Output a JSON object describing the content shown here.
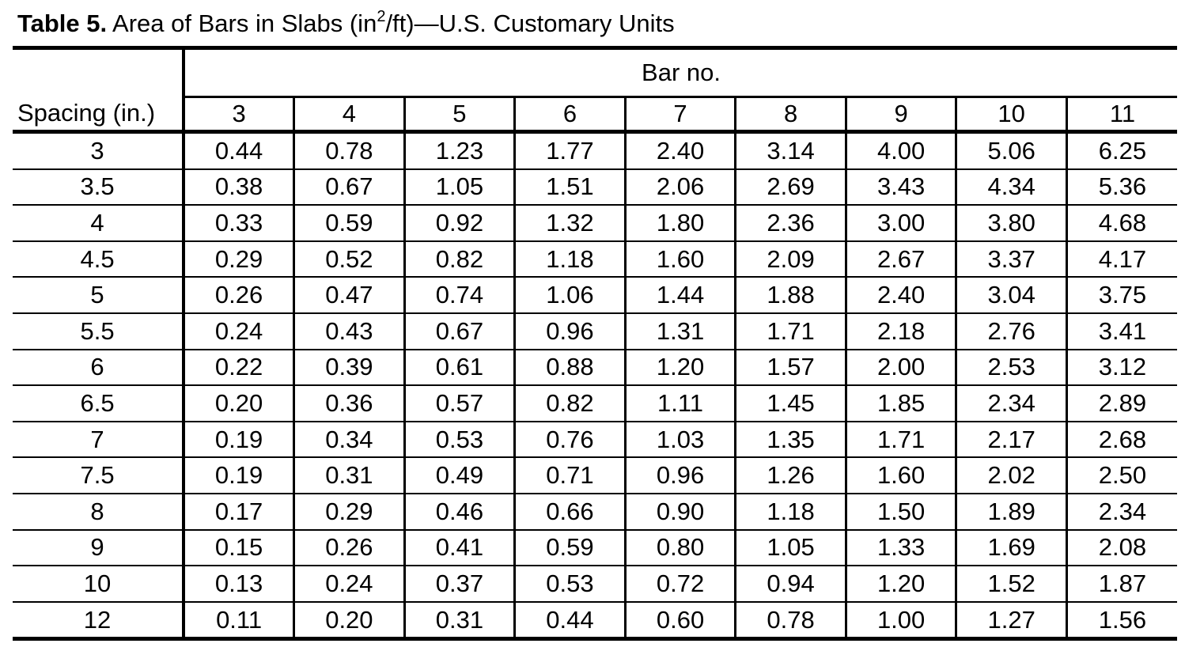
{
  "caption": {
    "label": "Table 5.",
    "title_before_sup": "Area of Bars in Slabs (in",
    "title_sup": "2",
    "title_after_sup": "/ft)—U.S. Customary Units"
  },
  "table": {
    "spacing_header": "Spacing (in.)",
    "group_header": "Bar no.",
    "bar_numbers": [
      "3",
      "4",
      "5",
      "6",
      "7",
      "8",
      "9",
      "10",
      "11"
    ],
    "rows": [
      {
        "spacing": "3",
        "values": [
          "0.44",
          "0.78",
          "1.23",
          "1.77",
          "2.40",
          "3.14",
          "4.00",
          "5.06",
          "6.25"
        ]
      },
      {
        "spacing": "3.5",
        "values": [
          "0.38",
          "0.67",
          "1.05",
          "1.51",
          "2.06",
          "2.69",
          "3.43",
          "4.34",
          "5.36"
        ]
      },
      {
        "spacing": "4",
        "values": [
          "0.33",
          "0.59",
          "0.92",
          "1.32",
          "1.80",
          "2.36",
          "3.00",
          "3.80",
          "4.68"
        ]
      },
      {
        "spacing": "4.5",
        "values": [
          "0.29",
          "0.52",
          "0.82",
          "1.18",
          "1.60",
          "2.09",
          "2.67",
          "3.37",
          "4.17"
        ]
      },
      {
        "spacing": "5",
        "values": [
          "0.26",
          "0.47",
          "0.74",
          "1.06",
          "1.44",
          "1.88",
          "2.40",
          "3.04",
          "3.75"
        ]
      },
      {
        "spacing": "5.5",
        "values": [
          "0.24",
          "0.43",
          "0.67",
          "0.96",
          "1.31",
          "1.71",
          "2.18",
          "2.76",
          "3.41"
        ]
      },
      {
        "spacing": "6",
        "values": [
          "0.22",
          "0.39",
          "0.61",
          "0.88",
          "1.20",
          "1.57",
          "2.00",
          "2.53",
          "3.12"
        ]
      },
      {
        "spacing": "6.5",
        "values": [
          "0.20",
          "0.36",
          "0.57",
          "0.82",
          "1.11",
          "1.45",
          "1.85",
          "2.34",
          "2.89"
        ]
      },
      {
        "spacing": "7",
        "values": [
          "0.19",
          "0.34",
          "0.53",
          "0.76",
          "1.03",
          "1.35",
          "1.71",
          "2.17",
          "2.68"
        ]
      },
      {
        "spacing": "7.5",
        "values": [
          "0.19",
          "0.31",
          "0.49",
          "0.71",
          "0.96",
          "1.26",
          "1.60",
          "2.02",
          "2.50"
        ]
      },
      {
        "spacing": "8",
        "values": [
          "0.17",
          "0.29",
          "0.46",
          "0.66",
          "0.90",
          "1.18",
          "1.50",
          "1.89",
          "2.34"
        ]
      },
      {
        "spacing": "9",
        "values": [
          "0.15",
          "0.26",
          "0.41",
          "0.59",
          "0.80",
          "1.05",
          "1.33",
          "1.69",
          "2.08"
        ]
      },
      {
        "spacing": "10",
        "values": [
          "0.13",
          "0.24",
          "0.37",
          "0.53",
          "0.72",
          "0.94",
          "1.20",
          "1.52",
          "1.87"
        ]
      },
      {
        "spacing": "12",
        "values": [
          "0.11",
          "0.20",
          "0.31",
          "0.44",
          "0.60",
          "0.78",
          "1.00",
          "1.27",
          "1.56"
        ]
      }
    ]
  }
}
